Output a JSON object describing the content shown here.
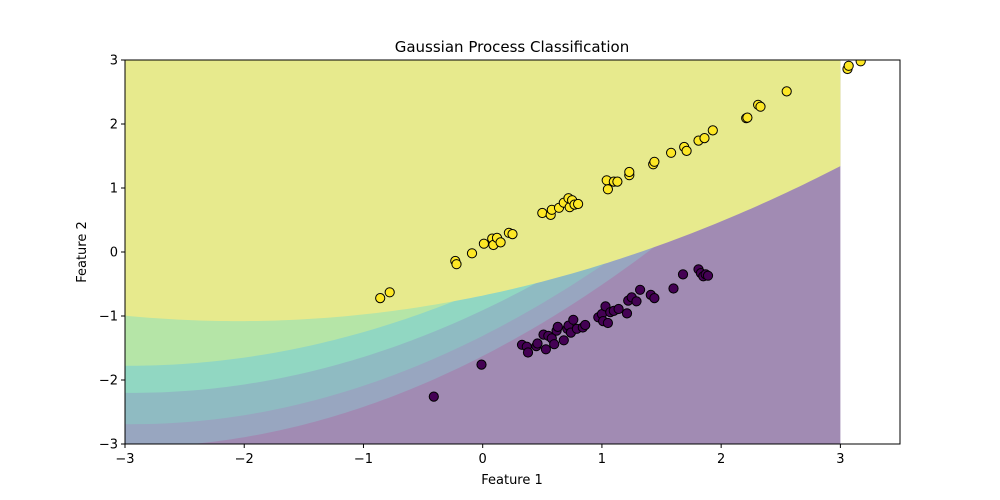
{
  "chart_data": {
    "type": "scatter",
    "title": "Gaussian Process Classification",
    "xlabel": "Feature 1",
    "ylabel": "Feature 2",
    "xlim": [
      -3,
      3.5
    ],
    "ylim": [
      -3,
      3
    ],
    "xticks": [
      -3,
      -2,
      -1,
      0,
      1,
      2,
      3
    ],
    "yticks": [
      -3,
      -2,
      -1,
      0,
      1,
      2,
      3
    ],
    "xtick_labels": [
      "−3",
      "−2",
      "−1",
      "0",
      "1",
      "2",
      "3"
    ],
    "ytick_labels": [
      "−3",
      "−2",
      "−1",
      "0",
      "1",
      "2",
      "3"
    ],
    "grid": false,
    "background": "decision-probability contour regions (filled, viridis, alpha 0.5) over x in [-3, 3], y in [-3, 3]",
    "region_colors": [
      "#a18bb3",
      "#9e95b9",
      "#98a6c0",
      "#8fbbc2",
      "#91d7c2",
      "#b5e5a7",
      "#e7ea8d"
    ],
    "point_edge_color": "#000000",
    "series": [
      {
        "color": "#fde725",
        "points": [
          [
            -0.86,
            -0.72
          ],
          [
            -0.78,
            -0.63
          ],
          [
            -0.23,
            -0.14
          ],
          [
            -0.22,
            -0.19
          ],
          [
            -0.09,
            -0.02
          ],
          [
            0.01,
            0.13
          ],
          [
            0.08,
            0.21
          ],
          [
            0.09,
            0.11
          ],
          [
            0.12,
            0.22
          ],
          [
            0.15,
            0.15
          ],
          [
            0.22,
            0.3
          ],
          [
            0.25,
            0.28
          ],
          [
            0.5,
            0.61
          ],
          [
            0.57,
            0.58
          ],
          [
            0.58,
            0.66
          ],
          [
            0.64,
            0.69
          ],
          [
            0.68,
            0.77
          ],
          [
            0.72,
            0.84
          ],
          [
            0.73,
            0.7
          ],
          [
            0.75,
            0.81
          ],
          [
            0.77,
            0.74
          ],
          [
            0.8,
            0.75
          ],
          [
            1.04,
            1.12
          ],
          [
            1.05,
            0.98
          ],
          [
            1.1,
            1.1
          ],
          [
            1.13,
            1.1
          ],
          [
            1.23,
            1.2
          ],
          [
            1.23,
            1.25
          ],
          [
            1.43,
            1.37
          ],
          [
            1.44,
            1.41
          ],
          [
            1.58,
            1.55
          ],
          [
            1.69,
            1.64
          ],
          [
            1.71,
            1.58
          ],
          [
            1.81,
            1.74
          ],
          [
            1.86,
            1.78
          ],
          [
            1.93,
            1.9
          ],
          [
            2.21,
            2.09
          ],
          [
            2.22,
            2.1
          ],
          [
            2.31,
            2.3
          ],
          [
            2.33,
            2.27
          ],
          [
            2.55,
            2.51
          ],
          [
            3.06,
            2.86
          ],
          [
            3.07,
            2.91
          ],
          [
            3.17,
            2.98
          ]
        ]
      },
      {
        "color": "#440154",
        "points": [
          [
            -0.41,
            -2.26
          ],
          [
            -0.01,
            -1.76
          ],
          [
            0.33,
            -1.45
          ],
          [
            0.37,
            -1.48
          ],
          [
            0.38,
            -1.57
          ],
          [
            0.45,
            -1.47
          ],
          [
            0.46,
            -1.43
          ],
          [
            0.51,
            -1.29
          ],
          [
            0.53,
            -1.52
          ],
          [
            0.55,
            -1.31
          ],
          [
            0.58,
            -1.35
          ],
          [
            0.6,
            -1.44
          ],
          [
            0.62,
            -1.23
          ],
          [
            0.63,
            -1.17
          ],
          [
            0.68,
            -1.38
          ],
          [
            0.71,
            -1.2
          ],
          [
            0.72,
            -1.15
          ],
          [
            0.74,
            -1.26
          ],
          [
            0.76,
            -1.06
          ],
          [
            0.79,
            -1.2
          ],
          [
            0.84,
            -1.18
          ],
          [
            0.86,
            -1.14
          ],
          [
            0.97,
            -1.02
          ],
          [
            1.0,
            -0.97
          ],
          [
            1.01,
            -1.08
          ],
          [
            1.03,
            -0.85
          ],
          [
            1.05,
            -1.11
          ],
          [
            1.07,
            -0.94
          ],
          [
            1.1,
            -0.92
          ],
          [
            1.14,
            -0.89
          ],
          [
            1.21,
            -0.96
          ],
          [
            1.22,
            -0.76
          ],
          [
            1.25,
            -0.71
          ],
          [
            1.29,
            -0.77
          ],
          [
            1.32,
            -0.59
          ],
          [
            1.41,
            -0.67
          ],
          [
            1.44,
            -0.72
          ],
          [
            1.6,
            -0.57
          ],
          [
            1.68,
            -0.35
          ],
          [
            1.81,
            -0.27
          ],
          [
            1.83,
            -0.33
          ],
          [
            1.85,
            -0.38
          ],
          [
            1.87,
            -0.35
          ],
          [
            1.89,
            -0.37
          ]
        ]
      }
    ]
  }
}
